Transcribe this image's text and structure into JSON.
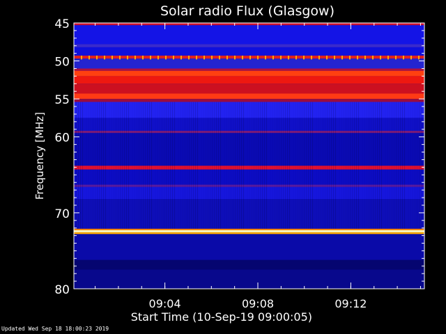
{
  "chart_data": {
    "type": "heatmap",
    "title": "Solar radio Flux (Glasgow)",
    "ylabel": "Frequency [MHz]",
    "xlabel": "Start Time (10-Sep-19 09:00:05)",
    "ylim": [
      45,
      80
    ],
    "y_ticks": [
      45,
      50,
      55,
      60,
      70,
      80
    ],
    "y_tick_labels": [
      "45",
      "50",
      "55",
      "60",
      "70",
      "80"
    ],
    "x_ticks": [
      "09:04",
      "09:08",
      "09:12"
    ],
    "x_range": [
      "09:00:05",
      "09:15:10"
    ],
    "colormap": [
      "#000033",
      "#0000aa",
      "#1a1aff",
      "#aa0033",
      "#ff2200",
      "#ffcc00",
      "#ffffe0"
    ],
    "bands": [
      {
        "from": 45.0,
        "to": 45.3,
        "color": "#cc1030"
      },
      {
        "from": 45.3,
        "to": 47.8,
        "color": "#1414e6"
      },
      {
        "from": 47.8,
        "to": 48.2,
        "color": "#3a2acc"
      },
      {
        "from": 48.2,
        "to": 49.3,
        "color": "#1010dd"
      },
      {
        "from": 49.3,
        "to": 49.7,
        "color": "#e02020"
      },
      {
        "from": 49.7,
        "to": 51.0,
        "color": "#2424d0"
      },
      {
        "from": 51.0,
        "to": 51.3,
        "color": "#b01040"
      },
      {
        "from": 51.3,
        "to": 52.0,
        "color": "#ff4010"
      },
      {
        "from": 52.0,
        "to": 53.0,
        "color": "#ee1810"
      },
      {
        "from": 53.0,
        "to": 54.3,
        "color": "#cc1020"
      },
      {
        "from": 54.3,
        "to": 55.0,
        "color": "#ff3a14"
      },
      {
        "from": 55.0,
        "to": 55.4,
        "color": "#9a0c40"
      },
      {
        "from": 55.4,
        "to": 57.5,
        "color": "#2222f0"
      },
      {
        "from": 57.5,
        "to": 59.2,
        "color": "#1010c8"
      },
      {
        "from": 59.2,
        "to": 59.5,
        "color": "#7a1a7a"
      },
      {
        "from": 59.5,
        "to": 63.8,
        "color": "#0a0ab4"
      },
      {
        "from": 63.8,
        "to": 64.3,
        "color": "#e01030"
      },
      {
        "from": 64.3,
        "to": 66.3,
        "color": "#0c0cc4"
      },
      {
        "from": 66.3,
        "to": 66.6,
        "color": "#5a1aa0"
      },
      {
        "from": 66.6,
        "to": 68.2,
        "color": "#1616dc"
      },
      {
        "from": 68.2,
        "to": 72.1,
        "color": "#0e0eb8"
      },
      {
        "from": 72.1,
        "to": 72.3,
        "color": "#ff8800"
      },
      {
        "from": 72.3,
        "to": 72.55,
        "color": "#ffffcc"
      },
      {
        "from": 72.55,
        "to": 72.8,
        "color": "#ffaa00"
      },
      {
        "from": 72.8,
        "to": 76.2,
        "color": "#0a0aa8"
      },
      {
        "from": 76.2,
        "to": 77.5,
        "color": "#050570"
      },
      {
        "from": 77.5,
        "to": 80.0,
        "color": "#08088c"
      }
    ]
  },
  "footer": {
    "updated": "Updated Wed Sep 18 18:00:23 2019"
  }
}
